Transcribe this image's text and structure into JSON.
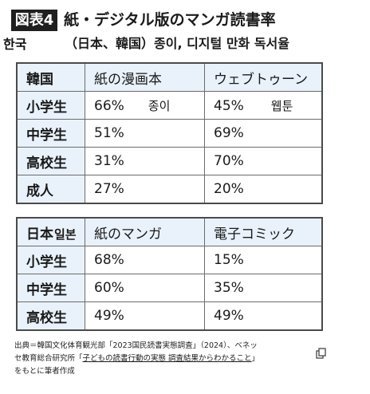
{
  "figure": {
    "badge": "図表4",
    "title": "紙・デジタル版のマンガ読書率",
    "subtitle": "（日本、韓国）종이, 디지털 만화 독서율",
    "annotation_korea": "한국"
  },
  "table1": {
    "header": [
      "韓国",
      "紙の漫画本",
      "ウェブトゥーン"
    ],
    "rows": [
      {
        "label": "小学生",
        "paper": "66%",
        "digital": "45%"
      },
      {
        "label": "中学生",
        "paper": "51%",
        "digital": "69%"
      },
      {
        "label": "高校生",
        "paper": "31%",
        "digital": "70%"
      },
      {
        "label": "成人",
        "paper": "27%",
        "digital": "20%"
      }
    ],
    "paper_annotation": "종이",
    "digital_annotation": "웹툰"
  },
  "table2": {
    "header": [
      "日本",
      "紙のマンガ",
      "電子コミック"
    ],
    "header_annotation": "일본",
    "rows": [
      {
        "label": "小学生",
        "paper": "68%",
        "digital": "15%"
      },
      {
        "label": "中学生",
        "paper": "60%",
        "digital": "35%"
      },
      {
        "label": "高校生",
        "paper": "49%",
        "digital": "49%"
      }
    ]
  },
  "source": {
    "line1": "出典＝韓国文化体育観光部「2023国民読書実態調査」（2024）、ベネッ",
    "line2_prefix": "セ教育総合研究所「",
    "link_text": "子どもの読書行動の実態 調査結果からわかること",
    "line2_suffix": "」",
    "line3": "をもとに筆者作成"
  }
}
